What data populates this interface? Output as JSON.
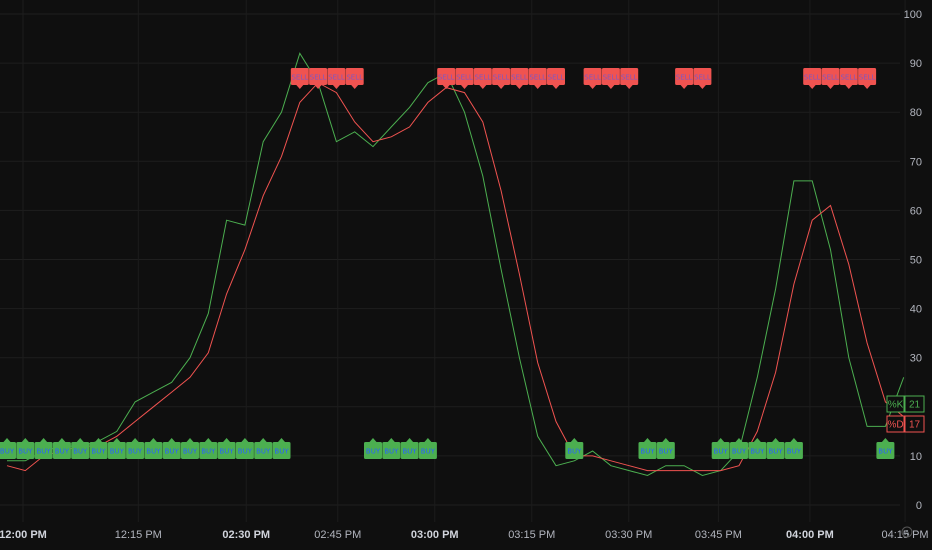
{
  "chart_data": {
    "type": "line",
    "title": "",
    "ylim": [
      -3,
      102
    ],
    "y_ticks": [
      "0",
      "10",
      "20",
      "30",
      "40",
      "50",
      "60",
      "70",
      "80",
      "90",
      "100"
    ],
    "x_ticks": [
      {
        "label": "12:00 PM",
        "bold": true,
        "i": 0
      },
      {
        "label": "12:15 PM",
        "bold": false,
        "i": 6.3
      },
      {
        "label": "02:30 PM",
        "bold": true,
        "i": 12.2
      },
      {
        "label": "02:45 PM",
        "bold": false,
        "i": 17.2
      },
      {
        "label": "03:00 PM",
        "bold": true,
        "i": 22.5
      },
      {
        "label": "03:15 PM",
        "bold": false,
        "i": 27.8
      },
      {
        "label": "03:30 PM",
        "bold": false,
        "i": 33.1
      },
      {
        "label": "03:45 PM",
        "bold": false,
        "i": 38.0
      },
      {
        "label": "04:00 PM",
        "bold": true,
        "i": 43.0
      },
      {
        "label": "04:15 PM",
        "bold": false,
        "i": 48.2
      }
    ],
    "grid": true,
    "series": [
      {
        "name": "%K",
        "color": "#4caf50",
        "values": [
          9,
          9,
          11,
          12,
          12,
          13,
          15,
          21,
          23,
          25,
          30,
          39,
          58,
          57,
          74,
          80,
          92,
          86,
          74,
          76,
          73,
          77,
          81,
          86,
          88,
          80,
          67,
          48,
          30,
          14,
          8,
          9,
          11,
          8,
          7,
          6,
          8,
          8,
          6,
          7,
          11,
          26,
          44,
          66,
          66,
          52,
          30,
          16,
          16,
          26
        ]
      },
      {
        "name": "%D",
        "color": "#f05350",
        "values": [
          8,
          7,
          10,
          11,
          12,
          12,
          14,
          17,
          20,
          23,
          26,
          31,
          43,
          52,
          63,
          71,
          82,
          86,
          84,
          78,
          74,
          75,
          77,
          82,
          85,
          84,
          78,
          64,
          47,
          29,
          17,
          10,
          10,
          9,
          8,
          7,
          7,
          7,
          7,
          7,
          8,
          15,
          27,
          45,
          58,
          61,
          49,
          33,
          21,
          18
        ]
      }
    ],
    "buy_signals": [
      0,
      1,
      2,
      3,
      4,
      5,
      6,
      7,
      8,
      9,
      10,
      11,
      12,
      13,
      14,
      15,
      20,
      21,
      22,
      23,
      31,
      35,
      36,
      39,
      40,
      41,
      42,
      43,
      48
    ],
    "sell_signals": [
      16,
      17,
      18,
      19,
      24,
      25,
      26,
      27,
      28,
      29,
      30,
      32,
      33,
      34,
      37,
      38,
      44,
      45,
      46,
      47
    ],
    "buy_label": "BUY",
    "sell_label": "SELL",
    "legend": [
      {
        "label": "%K",
        "value": "21",
        "color": "#4caf50"
      },
      {
        "label": "%D",
        "value": "17",
        "color": "#f05350"
      }
    ],
    "corner_mark": "A"
  }
}
